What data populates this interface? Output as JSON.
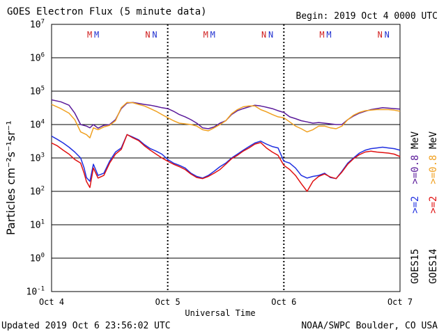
{
  "header": {
    "title": "GOES Electron Flux (5 minute data)",
    "begin": "Begin: 2019 Oct 4 0000 UTC"
  },
  "footer": {
    "updated": "Updated 2019 Oct  6 23:56:02 UTC",
    "agency": "NOAA/SWPC Boulder, CO USA"
  },
  "colors": {
    "goes15_2mev": "#1f2fe0",
    "goes14_2mev": "#e01010",
    "goes15_08mev": "#5a1a9a",
    "goes14_08mev": "#f0a020",
    "m_marker": "#d02020",
    "n_marker": "#2030d0"
  },
  "legend": {
    "goes15_group": {
      "sat": "GOES15",
      "e2": ">=2",
      "e08": ">=0.8",
      "unit": "MeV"
    },
    "goes14_group": {
      "sat": "GOES14",
      "e2": ">=2",
      "e08": ">=0.8",
      "unit": "MeV"
    }
  },
  "markers": [
    {
      "text": "M",
      "color": "#d02020",
      "day": 0.33
    },
    {
      "text": "M",
      "color": "#2030d0",
      "day": 0.39
    },
    {
      "text": "N",
      "color": "#d02020",
      "day": 0.83
    },
    {
      "text": "N",
      "color": "#2030d0",
      "day": 0.89
    },
    {
      "text": "M",
      "color": "#d02020",
      "day": 1.33
    },
    {
      "text": "M",
      "color": "#2030d0",
      "day": 1.39
    },
    {
      "text": "N",
      "color": "#d02020",
      "day": 1.83
    },
    {
      "text": "N",
      "color": "#2030d0",
      "day": 1.89
    },
    {
      "text": "M",
      "color": "#d02020",
      "day": 2.33
    },
    {
      "text": "M",
      "color": "#2030d0",
      "day": 2.39
    },
    {
      "text": "N",
      "color": "#d02020",
      "day": 2.83
    },
    {
      "text": "N",
      "color": "#2030d0",
      "day": 2.89
    }
  ],
  "chart_data": {
    "type": "line",
    "title": "GOES Electron Flux (5 minute data)",
    "xlabel": "Universal Time",
    "ylabel": "Particles cm⁻²s⁻¹sr⁻¹",
    "x_unit": "days since 2019 Oct 4 0000 UTC",
    "xlim": [
      0,
      3
    ],
    "x_ticks": [
      {
        "day": 0,
        "label": "Oct 4"
      },
      {
        "day": 1,
        "label": "Oct 5"
      },
      {
        "day": 2,
        "label": "Oct 6"
      },
      {
        "day": 3,
        "label": "Oct 7"
      }
    ],
    "yscale": "log",
    "ylim_exp": [
      -1,
      7
    ],
    "y_ticks": [
      {
        "exp": 7,
        "base": "10",
        "sup": "7"
      },
      {
        "exp": 6,
        "base": "10",
        "sup": "6"
      },
      {
        "exp": 5,
        "base": "10",
        "sup": "5"
      },
      {
        "exp": 4,
        "base": "10",
        "sup": "4"
      },
      {
        "exp": 3,
        "base": "10",
        "sup": "3"
      },
      {
        "exp": 2,
        "base": "10",
        "sup": "2"
      },
      {
        "exp": 1,
        "base": "10",
        "sup": "1"
      },
      {
        "exp": 0,
        "base": "10",
        "sup": "0"
      },
      {
        "exp": -1,
        "base": "10",
        "sup": "-1"
      }
    ],
    "threshold": 1000,
    "series": [
      {
        "name": "GOES15 >=0.8 MeV",
        "color": "#5a1a9a",
        "x": [
          0,
          0.08,
          0.15,
          0.2,
          0.25,
          0.3,
          0.33,
          0.36,
          0.4,
          0.45,
          0.5,
          0.55,
          0.6,
          0.65,
          0.7,
          0.75,
          0.8,
          0.85,
          0.9,
          0.95,
          1.0,
          1.05,
          1.1,
          1.15,
          1.2,
          1.25,
          1.3,
          1.35,
          1.4,
          1.45,
          1.5,
          1.55,
          1.6,
          1.65,
          1.7,
          1.75,
          1.8,
          1.85,
          1.9,
          1.95,
          2.0,
          2.05,
          2.1,
          2.15,
          2.2,
          2.25,
          2.3,
          2.35,
          2.4,
          2.45,
          2.5,
          2.55,
          2.6,
          2.65,
          2.7,
          2.75,
          2.8,
          2.85,
          2.9,
          2.95,
          3.0
        ],
        "y": [
          55000,
          48000,
          38000,
          22000,
          10000,
          9000,
          8000,
          10000,
          7800,
          9500,
          10000,
          14000,
          30000,
          44000,
          46000,
          43000,
          40000,
          38000,
          35000,
          32000,
          30000,
          25000,
          20000,
          17000,
          14000,
          11000,
          8000,
          7500,
          8500,
          11000,
          13000,
          20000,
          26000,
          30000,
          34000,
          38000,
          36000,
          33000,
          30000,
          26000,
          23000,
          17000,
          15000,
          13000,
          12000,
          11000,
          11500,
          11000,
          10500,
          10000,
          10000,
          14000,
          18000,
          22000,
          25000,
          28000,
          30000,
          32000,
          31000,
          30000,
          29000
        ]
      },
      {
        "name": "GOES14 >=0.8 MeV",
        "color": "#f0a020",
        "x": [
          0,
          0.08,
          0.15,
          0.2,
          0.25,
          0.3,
          0.33,
          0.36,
          0.4,
          0.45,
          0.5,
          0.55,
          0.6,
          0.65,
          0.7,
          0.75,
          0.8,
          0.85,
          0.9,
          0.95,
          1.0,
          1.05,
          1.1,
          1.15,
          1.2,
          1.25,
          1.3,
          1.35,
          1.4,
          1.45,
          1.5,
          1.55,
          1.6,
          1.65,
          1.7,
          1.75,
          1.8,
          1.85,
          1.9,
          1.95,
          2.0,
          2.05,
          2.1,
          2.15,
          2.2,
          2.25,
          2.3,
          2.35,
          2.4,
          2.45,
          2.5,
          2.55,
          2.6,
          2.65,
          2.7,
          2.75,
          2.8,
          2.85,
          2.9,
          2.95,
          3.0
        ],
        "y": [
          40000,
          30000,
          22000,
          14000,
          6000,
          5000,
          4000,
          8000,
          7000,
          8500,
          9500,
          13000,
          32000,
          46000,
          45000,
          40000,
          36000,
          30000,
          25000,
          20000,
          16000,
          13000,
          11000,
          10500,
          10000,
          9000,
          7000,
          6500,
          8000,
          10000,
          13000,
          21000,
          28000,
          34000,
          36000,
          36000,
          28000,
          24000,
          20000,
          17000,
          16000,
          12000,
          9000,
          7500,
          6000,
          7000,
          9000,
          9000,
          8000,
          7500,
          9000,
          14000,
          19000,
          23000,
          26000,
          27000,
          28000,
          28000,
          28000,
          27000,
          25000
        ]
      },
      {
        "name": "GOES15 >=2 MeV",
        "color": "#1f2fe0",
        "x": [
          0,
          0.05,
          0.1,
          0.15,
          0.2,
          0.25,
          0.28,
          0.3,
          0.33,
          0.36,
          0.4,
          0.45,
          0.5,
          0.55,
          0.6,
          0.65,
          0.7,
          0.75,
          0.8,
          0.85,
          0.9,
          0.95,
          1.0,
          1.05,
          1.1,
          1.15,
          1.2,
          1.25,
          1.3,
          1.35,
          1.4,
          1.45,
          1.5,
          1.55,
          1.6,
          1.65,
          1.7,
          1.75,
          1.8,
          1.85,
          1.9,
          1.95,
          2.0,
          2.05,
          2.1,
          2.15,
          2.2,
          2.25,
          2.3,
          2.35,
          2.4,
          2.45,
          2.5,
          2.55,
          2.6,
          2.65,
          2.7,
          2.75,
          2.8,
          2.85,
          2.9,
          2.95,
          3.0
        ],
        "y": [
          4500,
          3600,
          2800,
          2100,
          1500,
          1000,
          500,
          260,
          200,
          650,
          300,
          350,
          800,
          1500,
          2000,
          5000,
          4200,
          3500,
          2500,
          1900,
          1600,
          1300,
          900,
          700,
          600,
          500,
          350,
          280,
          250,
          300,
          400,
          550,
          700,
          1000,
          1300,
          1700,
          2200,
          2800,
          3200,
          2600,
          2200,
          2000,
          800,
          700,
          500,
          300,
          250,
          280,
          300,
          350,
          260,
          240,
          400,
          700,
          1000,
          1400,
          1700,
          1900,
          2000,
          2100,
          2000,
          1900,
          1700
        ]
      },
      {
        "name": "GOES14 >=2 MeV",
        "color": "#e01010",
        "x": [
          0,
          0.05,
          0.1,
          0.15,
          0.2,
          0.25,
          0.28,
          0.3,
          0.33,
          0.36,
          0.4,
          0.45,
          0.5,
          0.55,
          0.6,
          0.65,
          0.7,
          0.75,
          0.8,
          0.85,
          0.9,
          0.95,
          1.0,
          1.05,
          1.1,
          1.15,
          1.2,
          1.25,
          1.3,
          1.35,
          1.4,
          1.45,
          1.5,
          1.55,
          1.6,
          1.65,
          1.7,
          1.75,
          1.8,
          1.85,
          1.9,
          1.95,
          2.0,
          2.05,
          2.1,
          2.15,
          2.2,
          2.25,
          2.3,
          2.35,
          2.4,
          2.45,
          2.5,
          2.55,
          2.6,
          2.65,
          2.7,
          2.75,
          2.8,
          2.85,
          2.9,
          2.95,
          3.0
        ],
        "y": [
          2800,
          2300,
          1700,
          1300,
          900,
          700,
          350,
          200,
          130,
          500,
          250,
          300,
          700,
          1300,
          1800,
          5000,
          4000,
          3300,
          2300,
          1700,
          1300,
          1000,
          800,
          650,
          550,
          450,
          330,
          260,
          240,
          280,
          350,
          450,
          650,
          950,
          1200,
          1600,
          2000,
          2600,
          2900,
          2000,
          1500,
          1200,
          600,
          450,
          300,
          170,
          100,
          200,
          280,
          330,
          270,
          240,
          380,
          650,
          950,
          1250,
          1500,
          1600,
          1500,
          1450,
          1400,
          1300,
          1100
        ]
      }
    ]
  }
}
